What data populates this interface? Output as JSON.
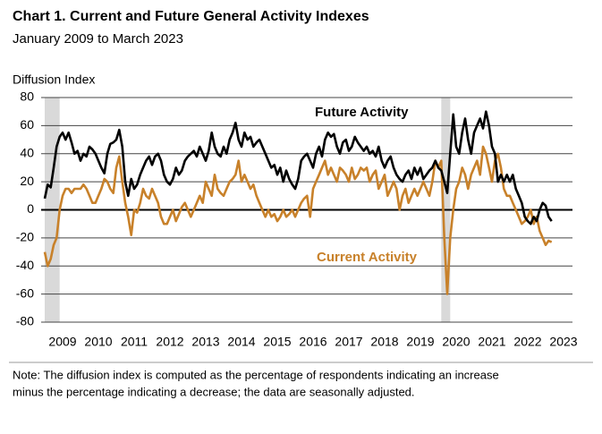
{
  "chart_data": {
    "type": "line",
    "title": "Chart 1. Current and Future General Activity Indexes",
    "subtitle": "January 2009 to March 2023",
    "y_label": "Diffusion Index",
    "note": [
      "Note: The diffusion index is computed as the percentage of respondents indicating an increase",
      "minus the percentage indicating a decrease; the data are seasonally adjusted."
    ],
    "annotations": [
      {
        "text": "Future Activity",
        "series": 0
      },
      {
        "text": "Current Activity",
        "series": 1
      }
    ],
    "xlim": [
      2009,
      2023.75
    ],
    "ylim": [
      -80,
      80
    ],
    "yticks": [
      -80,
      -60,
      -40,
      -20,
      0,
      20,
      40,
      60,
      80
    ],
    "xticks": [
      {
        "value": 2009.5,
        "label": "2009"
      },
      {
        "value": 2010.5,
        "label": "2010"
      },
      {
        "value": 2011.5,
        "label": "2011"
      },
      {
        "value": 2012.5,
        "label": "2012"
      },
      {
        "value": 2013.5,
        "label": "2013"
      },
      {
        "value": 2014.5,
        "label": "2014"
      },
      {
        "value": 2015.5,
        "label": "2015"
      },
      {
        "value": 2016.5,
        "label": "2016"
      },
      {
        "value": 2017.5,
        "label": "2017"
      },
      {
        "value": 2018.5,
        "label": "2018"
      },
      {
        "value": 2019.5,
        "label": "2019"
      },
      {
        "value": 2020.5,
        "label": "2020"
      },
      {
        "value": 2021.5,
        "label": "2021"
      },
      {
        "value": 2022.5,
        "label": "2022"
      },
      {
        "value": 2023.5,
        "label": "2023"
      }
    ],
    "grid": true,
    "shaded_regions": [
      [
        2009,
        2009.417
      ],
      [
        2020.083,
        2020.333
      ]
    ],
    "x": [
      2009,
      2009.083,
      2009.167,
      2009.25,
      2009.333,
      2009.417,
      2009.5,
      2009.583,
      2009.667,
      2009.75,
      2009.833,
      2009.917,
      2010,
      2010.083,
      2010.167,
      2010.25,
      2010.333,
      2010.417,
      2010.5,
      2010.583,
      2010.667,
      2010.75,
      2010.833,
      2010.917,
      2011,
      2011.083,
      2011.167,
      2011.25,
      2011.333,
      2011.417,
      2011.5,
      2011.583,
      2011.667,
      2011.75,
      2011.833,
      2011.917,
      2012,
      2012.083,
      2012.167,
      2012.25,
      2012.333,
      2012.417,
      2012.5,
      2012.583,
      2012.667,
      2012.75,
      2012.833,
      2012.917,
      2013,
      2013.083,
      2013.167,
      2013.25,
      2013.333,
      2013.417,
      2013.5,
      2013.583,
      2013.667,
      2013.75,
      2013.833,
      2013.917,
      2014,
      2014.083,
      2014.167,
      2014.25,
      2014.333,
      2014.417,
      2014.5,
      2014.583,
      2014.667,
      2014.75,
      2014.833,
      2014.917,
      2015,
      2015.083,
      2015.167,
      2015.25,
      2015.333,
      2015.417,
      2015.5,
      2015.583,
      2015.667,
      2015.75,
      2015.833,
      2015.917,
      2016,
      2016.083,
      2016.167,
      2016.25,
      2016.333,
      2016.417,
      2016.5,
      2016.583,
      2016.667,
      2016.75,
      2016.833,
      2016.917,
      2017,
      2017.083,
      2017.167,
      2017.25,
      2017.333,
      2017.417,
      2017.5,
      2017.583,
      2017.667,
      2017.75,
      2017.833,
      2017.917,
      2018,
      2018.083,
      2018.167,
      2018.25,
      2018.333,
      2018.417,
      2018.5,
      2018.583,
      2018.667,
      2018.75,
      2018.833,
      2018.917,
      2019,
      2019.083,
      2019.167,
      2019.25,
      2019.333,
      2019.417,
      2019.5,
      2019.583,
      2019.667,
      2019.75,
      2019.833,
      2019.917,
      2020,
      2020.083,
      2020.167,
      2020.25,
      2020.333,
      2020.417,
      2020.5,
      2020.583,
      2020.667,
      2020.75,
      2020.833,
      2020.917,
      2021,
      2021.083,
      2021.167,
      2021.25,
      2021.333,
      2021.417,
      2021.5,
      2021.583,
      2021.667,
      2021.75,
      2021.833,
      2021.917,
      2022,
      2022.083,
      2022.167,
      2022.25,
      2022.333,
      2022.417,
      2022.5,
      2022.583,
      2022.667,
      2022.75,
      2022.833,
      2022.917,
      2023,
      2023.083,
      2023.167
    ],
    "series": [
      {
        "name": "Future Activity",
        "color": "#000000",
        "values": [
          8,
          18,
          16,
          30,
          45,
          52,
          55,
          50,
          55,
          48,
          40,
          42,
          35,
          40,
          38,
          45,
          43,
          40,
          35,
          30,
          26,
          40,
          47,
          48,
          50,
          57,
          45,
          20,
          10,
          22,
          15,
          18,
          25,
          30,
          35,
          38,
          32,
          38,
          40,
          35,
          25,
          20,
          18,
          22,
          30,
          25,
          28,
          35,
          38,
          40,
          42,
          38,
          45,
          40,
          35,
          42,
          55,
          45,
          40,
          38,
          45,
          40,
          50,
          55,
          62,
          50,
          45,
          55,
          50,
          52,
          45,
          48,
          50,
          45,
          40,
          35,
          30,
          32,
          25,
          30,
          20,
          28,
          22,
          18,
          15,
          22,
          35,
          38,
          40,
          35,
          30,
          40,
          45,
          38,
          50,
          55,
          52,
          54,
          45,
          40,
          48,
          50,
          42,
          45,
          52,
          48,
          45,
          42,
          45,
          40,
          42,
          38,
          45,
          35,
          30,
          35,
          38,
          30,
          25,
          22,
          20,
          25,
          28,
          22,
          30,
          25,
          30,
          22,
          25,
          28,
          30,
          35,
          30,
          28,
          20,
          12,
          40,
          68,
          45,
          40,
          55,
          65,
          50,
          40,
          55,
          60,
          65,
          58,
          70,
          60,
          45,
          40,
          20,
          25,
          20,
          25,
          20,
          25,
          15,
          10,
          5,
          -5,
          -8,
          -10,
          -5,
          -8,
          0,
          5,
          3,
          -5,
          -8
        ]
      },
      {
        "name": "Current Activity",
        "color": "#c8812a",
        "values": [
          -30,
          -40,
          -35,
          -25,
          -20,
          0,
          10,
          15,
          15,
          12,
          15,
          15,
          15,
          18,
          15,
          10,
          5,
          5,
          10,
          15,
          22,
          20,
          15,
          12,
          30,
          38,
          20,
          5,
          -5,
          -18,
          0,
          -2,
          5,
          15,
          10,
          8,
          15,
          10,
          5,
          -5,
          -10,
          -10,
          -5,
          0,
          -8,
          -3,
          2,
          5,
          0,
          -5,
          0,
          5,
          10,
          5,
          20,
          15,
          10,
          25,
          15,
          12,
          10,
          15,
          20,
          22,
          25,
          35,
          20,
          25,
          20,
          15,
          18,
          10,
          5,
          0,
          -5,
          0,
          -5,
          -3,
          -8,
          -5,
          0,
          -5,
          -3,
          0,
          -5,
          0,
          5,
          8,
          10,
          -5,
          15,
          20,
          25,
          30,
          35,
          25,
          30,
          25,
          20,
          30,
          28,
          25,
          20,
          30,
          22,
          25,
          30,
          28,
          30,
          20,
          25,
          28,
          15,
          20,
          25,
          10,
          15,
          20,
          15,
          0,
          10,
          15,
          5,
          10,
          15,
          10,
          15,
          20,
          15,
          10,
          20,
          35,
          30,
          35,
          -20,
          -60,
          -20,
          0,
          15,
          20,
          30,
          25,
          15,
          25,
          30,
          35,
          25,
          45,
          40,
          30,
          20,
          35,
          40,
          30,
          15,
          10,
          10,
          5,
          0,
          -5,
          -10,
          -8,
          -5,
          0,
          -10,
          -5,
          -15,
          -20,
          -25,
          -22,
          -23
        ]
      }
    ]
  }
}
